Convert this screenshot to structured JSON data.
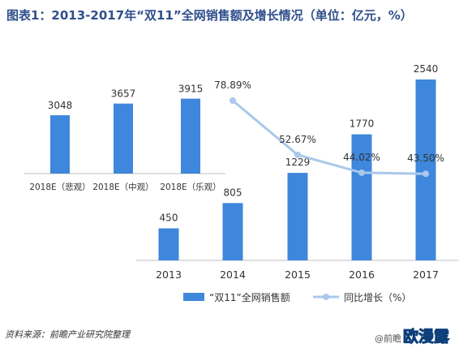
{
  "title": "图表1：2013-2017年“双11”全网销售额及增长情况（单位：亿元，%）",
  "source": "资料来源：前瞻产业研究院整理",
  "watermark": {
    "prefix": "@前瞻",
    "brand": "欧漫露"
  },
  "colors": {
    "bar": "#3f87dc",
    "line": "#a9c8ea",
    "axis": "#bfbfbf",
    "text": "#333333"
  },
  "chart_data": [
    {
      "type": "bar",
      "title": "",
      "categories": [
        "2018E（悲观）",
        "2018E（中观）",
        "2018E（乐观）"
      ],
      "series": [
        {
          "values": [
            3048,
            3657,
            3915
          ]
        }
      ]
    },
    {
      "type": "bar+line",
      "categories": [
        "2013",
        "2014",
        "2015",
        "2016",
        "2017"
      ],
      "series": [
        {
          "name": "“双11”全网销售额",
          "type": "bar",
          "values": [
            450,
            805,
            1229,
            1770,
            2540
          ]
        },
        {
          "name": "同比增长（%）",
          "type": "line",
          "values": [
            null,
            78.89,
            52.67,
            44.02,
            43.5
          ],
          "labels": [
            "",
            "78.89%",
            "52.67%",
            "44.02%",
            "43.50%"
          ]
        }
      ],
      "legend": "bottom"
    }
  ]
}
